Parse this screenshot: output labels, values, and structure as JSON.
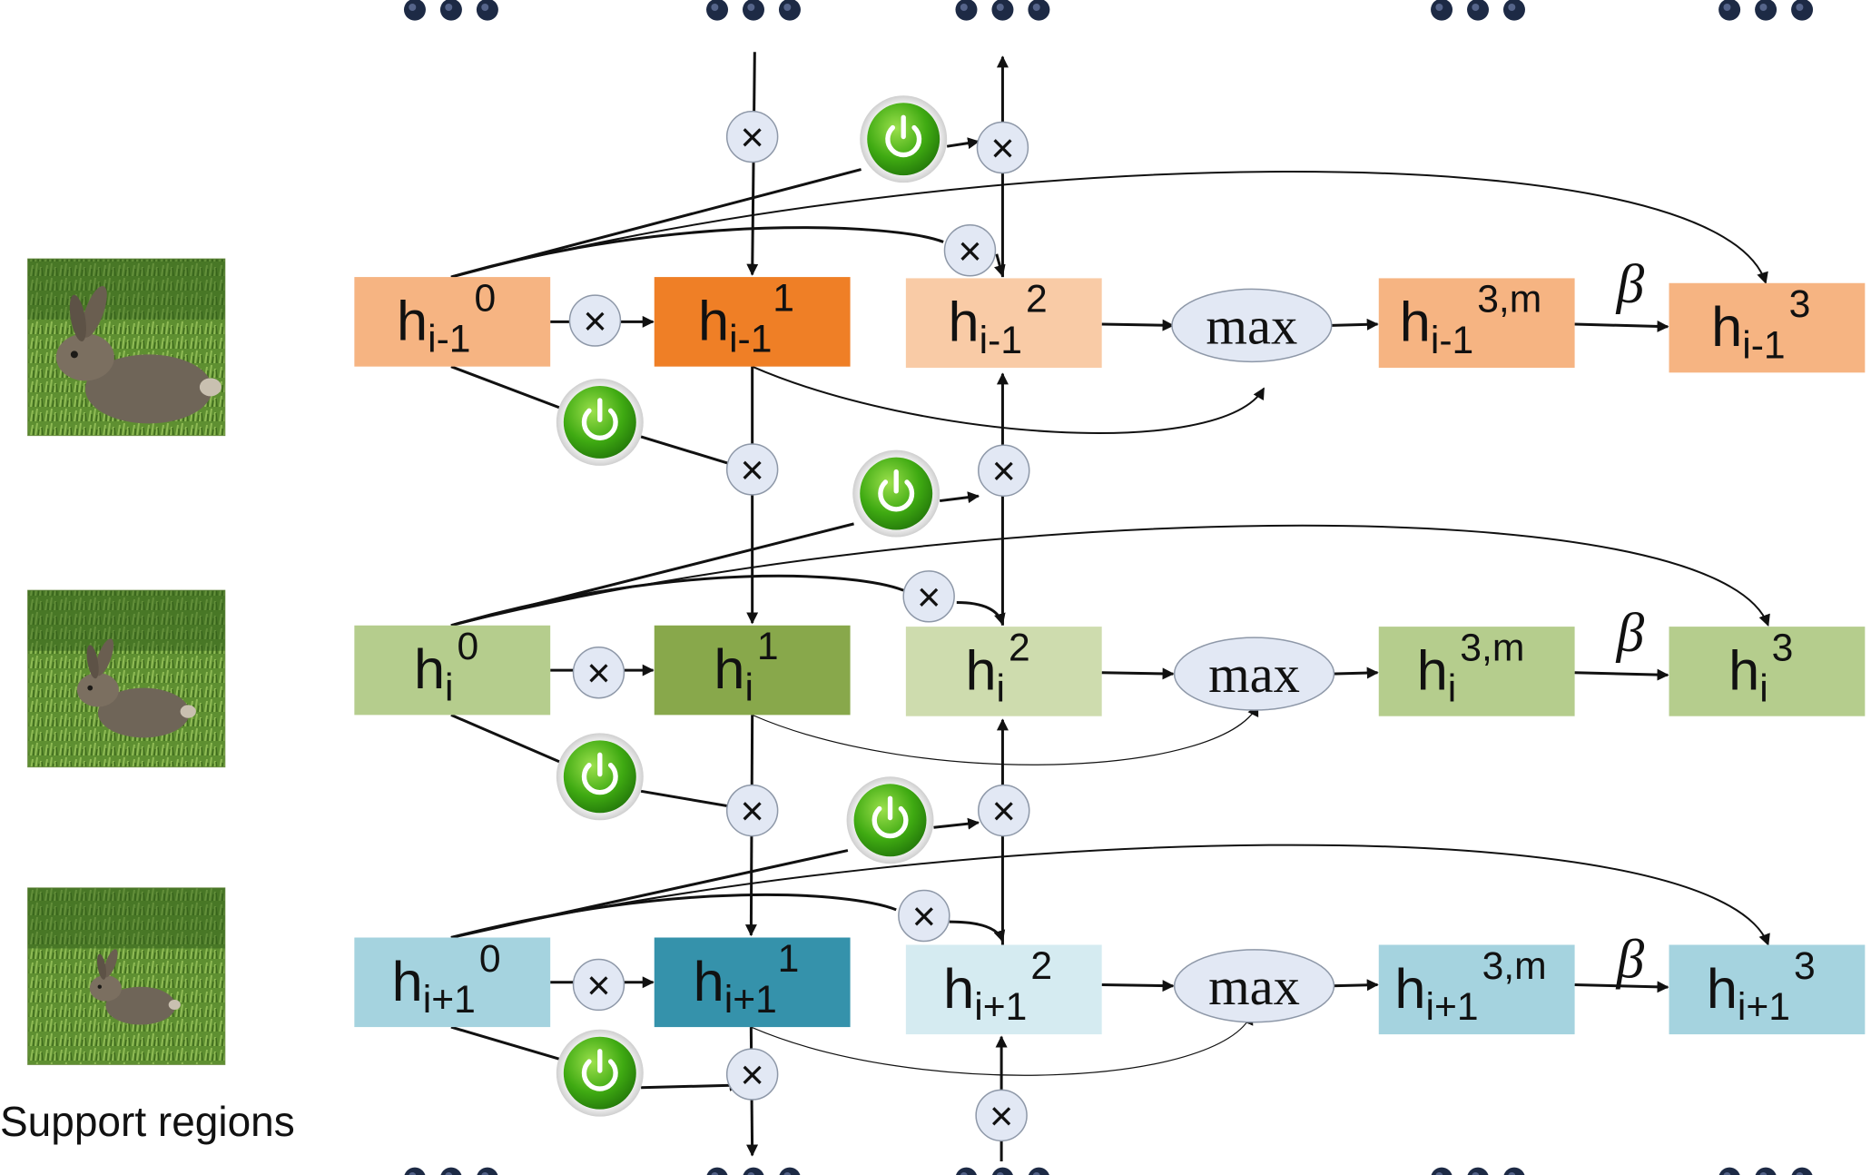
{
  "caption": "Support regions",
  "multiply_symbol": "×",
  "max_label": "max",
  "beta_label": "β",
  "ellipsis_marks": "•••",
  "support_images": [
    {
      "name": "rabbit-region-large"
    },
    {
      "name": "rabbit-region-medium"
    },
    {
      "name": "rabbit-region-small"
    }
  ],
  "rows": [
    {
      "id": "i-1",
      "nodes": [
        {
          "base": "h",
          "sub": "i-1",
          "sup": "0",
          "color": "#f6b482"
        },
        {
          "base": "h",
          "sub": "i-1",
          "sup": "1",
          "color": "#ef7f26"
        },
        {
          "base": "h",
          "sub": "i-1",
          "sup": "2",
          "color": "#f9cba6"
        },
        {
          "base": "h",
          "sub": "i-1",
          "sup": "3,m",
          "color": "#f6b482"
        },
        {
          "base": "h",
          "sub": "i-1",
          "sup": "3",
          "color": "#f6b482"
        }
      ]
    },
    {
      "id": "i",
      "nodes": [
        {
          "base": "h",
          "sub": "i",
          "sup": "0",
          "color": "#b5cd8d"
        },
        {
          "base": "h",
          "sub": "i",
          "sup": "1",
          "color": "#88a84b"
        },
        {
          "base": "h",
          "sub": "i",
          "sup": "2",
          "color": "#cedcae"
        },
        {
          "base": "h",
          "sub": "i",
          "sup": "3,m",
          "color": "#b5cd8d"
        },
        {
          "base": "h",
          "sub": "i",
          "sup": "3",
          "color": "#b5cd8d"
        }
      ]
    },
    {
      "id": "i+1",
      "nodes": [
        {
          "base": "h",
          "sub": "i+1",
          "sup": "0",
          "color": "#a5d3df"
        },
        {
          "base": "h",
          "sub": "i+1",
          "sup": "1",
          "color": "#3592ab"
        },
        {
          "base": "h",
          "sub": "i+1",
          "sup": "2",
          "color": "#d5ebf1"
        },
        {
          "base": "h",
          "sub": "i+1",
          "sup": "3,m",
          "color": "#a5d3df"
        },
        {
          "base": "h",
          "sub": "i+1",
          "sup": "3",
          "color": "#a5d3df"
        }
      ]
    }
  ],
  "colors": {
    "multiply_circle": "#e2e8f4",
    "max_ellipse": "#e2e8f4",
    "gate_green": "#3faa12",
    "arrow": "#111111"
  },
  "icons": {
    "gate": "power-icon",
    "multiply": "multiply-icon"
  }
}
